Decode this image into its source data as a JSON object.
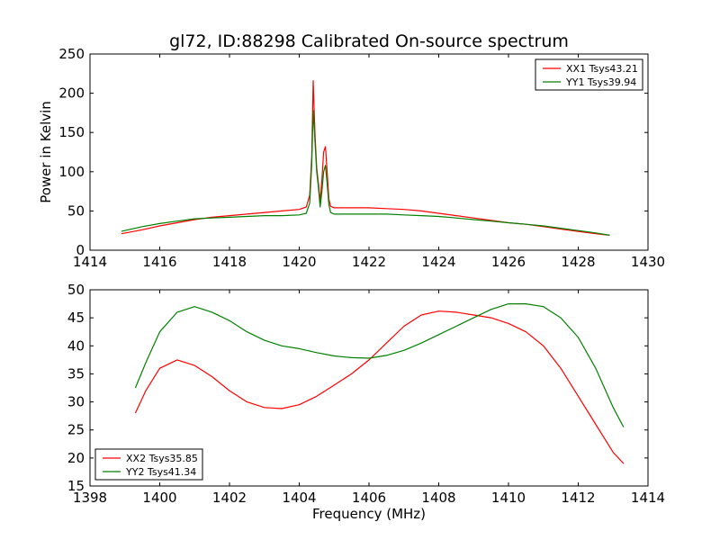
{
  "figure": {
    "title": "gl72, ID:88298 Calibrated On-source spectrum",
    "background": "#ffffff"
  },
  "chart_data": [
    {
      "type": "line",
      "title": "gl72, ID:88298 Calibrated On-source spectrum",
      "xlabel": "",
      "ylabel": "Power in Kelvin",
      "xlim": [
        1414,
        1430
      ],
      "ylim": [
        0,
        250
      ],
      "xticks": [
        1414,
        1416,
        1418,
        1420,
        1422,
        1424,
        1426,
        1428,
        1430
      ],
      "yticks": [
        0,
        50,
        100,
        150,
        200,
        250
      ],
      "grid": false,
      "legend_position": "top-right",
      "series": [
        {
          "name": "XX1 Tsys43.21",
          "color": "#ff0000",
          "x": [
            1414.9,
            1415.5,
            1416.0,
            1416.5,
            1417.0,
            1417.5,
            1418.0,
            1418.5,
            1419.0,
            1419.5,
            1420.0,
            1420.2,
            1420.3,
            1420.36,
            1420.4,
            1420.45,
            1420.5,
            1420.55,
            1420.6,
            1420.65,
            1420.7,
            1420.75,
            1420.8,
            1420.85,
            1420.9,
            1421.0,
            1421.5,
            1422.0,
            1422.5,
            1423.0,
            1423.5,
            1424.0,
            1424.5,
            1425.0,
            1425.5,
            1426.0,
            1426.5,
            1427.0,
            1427.5,
            1428.0,
            1428.5,
            1428.9
          ],
          "y": [
            21,
            26,
            31,
            35,
            39,
            42,
            44,
            46,
            48,
            50,
            52,
            55,
            70,
            120,
            216,
            150,
            105,
            85,
            62,
            90,
            125,
            132,
            100,
            65,
            56,
            54,
            54,
            54,
            53,
            52,
            50,
            47,
            44,
            41,
            38,
            35,
            33,
            30,
            27,
            24,
            21,
            19
          ]
        },
        {
          "name": "YY1 Tsys39.94",
          "color": "#008000",
          "x": [
            1414.9,
            1415.5,
            1416.0,
            1416.5,
            1417.0,
            1417.5,
            1418.0,
            1418.5,
            1419.0,
            1419.5,
            1420.0,
            1420.2,
            1420.3,
            1420.36,
            1420.4,
            1420.45,
            1420.5,
            1420.55,
            1420.6,
            1420.65,
            1420.7,
            1420.75,
            1420.8,
            1420.85,
            1420.9,
            1421.0,
            1421.5,
            1422.0,
            1422.5,
            1423.0,
            1423.5,
            1424.0,
            1424.5,
            1425.0,
            1425.5,
            1426.0,
            1426.5,
            1427.0,
            1427.5,
            1428.0,
            1428.5,
            1428.9
          ],
          "y": [
            24,
            30,
            34,
            37,
            40,
            41,
            42,
            43,
            44,
            44,
            45,
            47,
            60,
            110,
            178,
            140,
            100,
            80,
            55,
            75,
            100,
            108,
            85,
            58,
            48,
            46,
            46,
            46,
            46,
            45,
            44,
            43,
            41,
            39,
            37,
            35,
            33,
            31,
            28,
            25,
            22,
            19
          ]
        }
      ]
    },
    {
      "type": "line",
      "title": "",
      "xlabel": "Frequency (MHz)",
      "ylabel": "",
      "xlim": [
        1398,
        1414
      ],
      "ylim": [
        15,
        50
      ],
      "xticks": [
        1398,
        1400,
        1402,
        1404,
        1406,
        1408,
        1410,
        1412,
        1414
      ],
      "yticks": [
        15,
        20,
        25,
        30,
        35,
        40,
        45,
        50
      ],
      "grid": false,
      "legend_position": "bottom-left",
      "series": [
        {
          "name": "XX2 Tsys35.85",
          "color": "#ff0000",
          "x": [
            1399.3,
            1399.6,
            1400.0,
            1400.5,
            1401.0,
            1401.5,
            1402.0,
            1402.5,
            1403.0,
            1403.5,
            1404.0,
            1404.5,
            1405.0,
            1405.5,
            1406.0,
            1406.5,
            1407.0,
            1407.5,
            1408.0,
            1408.5,
            1409.0,
            1409.5,
            1410.0,
            1410.5,
            1411.0,
            1411.5,
            1412.0,
            1412.5,
            1413.0,
            1413.3
          ],
          "y": [
            28,
            32,
            36,
            37.5,
            36.5,
            34.5,
            32,
            30,
            29,
            28.8,
            29.5,
            31,
            33,
            35,
            37.5,
            40.5,
            43.5,
            45.5,
            46.2,
            46,
            45.5,
            45,
            44,
            42.5,
            40,
            36,
            31,
            26,
            21,
            19
          ]
        },
        {
          "name": "YY2 Tsys41.34",
          "color": "#008000",
          "x": [
            1399.3,
            1399.6,
            1400.0,
            1400.5,
            1401.0,
            1401.5,
            1402.0,
            1402.5,
            1403.0,
            1403.5,
            1404.0,
            1404.5,
            1405.0,
            1405.5,
            1406.0,
            1406.5,
            1407.0,
            1407.5,
            1408.0,
            1408.5,
            1409.0,
            1409.5,
            1410.0,
            1410.5,
            1411.0,
            1411.5,
            1412.0,
            1412.5,
            1413.0,
            1413.3
          ],
          "y": [
            32.5,
            37,
            42.5,
            46,
            47,
            46,
            44.5,
            42.5,
            41,
            40,
            39.5,
            38.8,
            38.2,
            37.9,
            37.8,
            38.3,
            39.2,
            40.5,
            42,
            43.5,
            45,
            46.5,
            47.5,
            47.5,
            47,
            45,
            41.5,
            36,
            29,
            25.5
          ]
        }
      ]
    }
  ]
}
